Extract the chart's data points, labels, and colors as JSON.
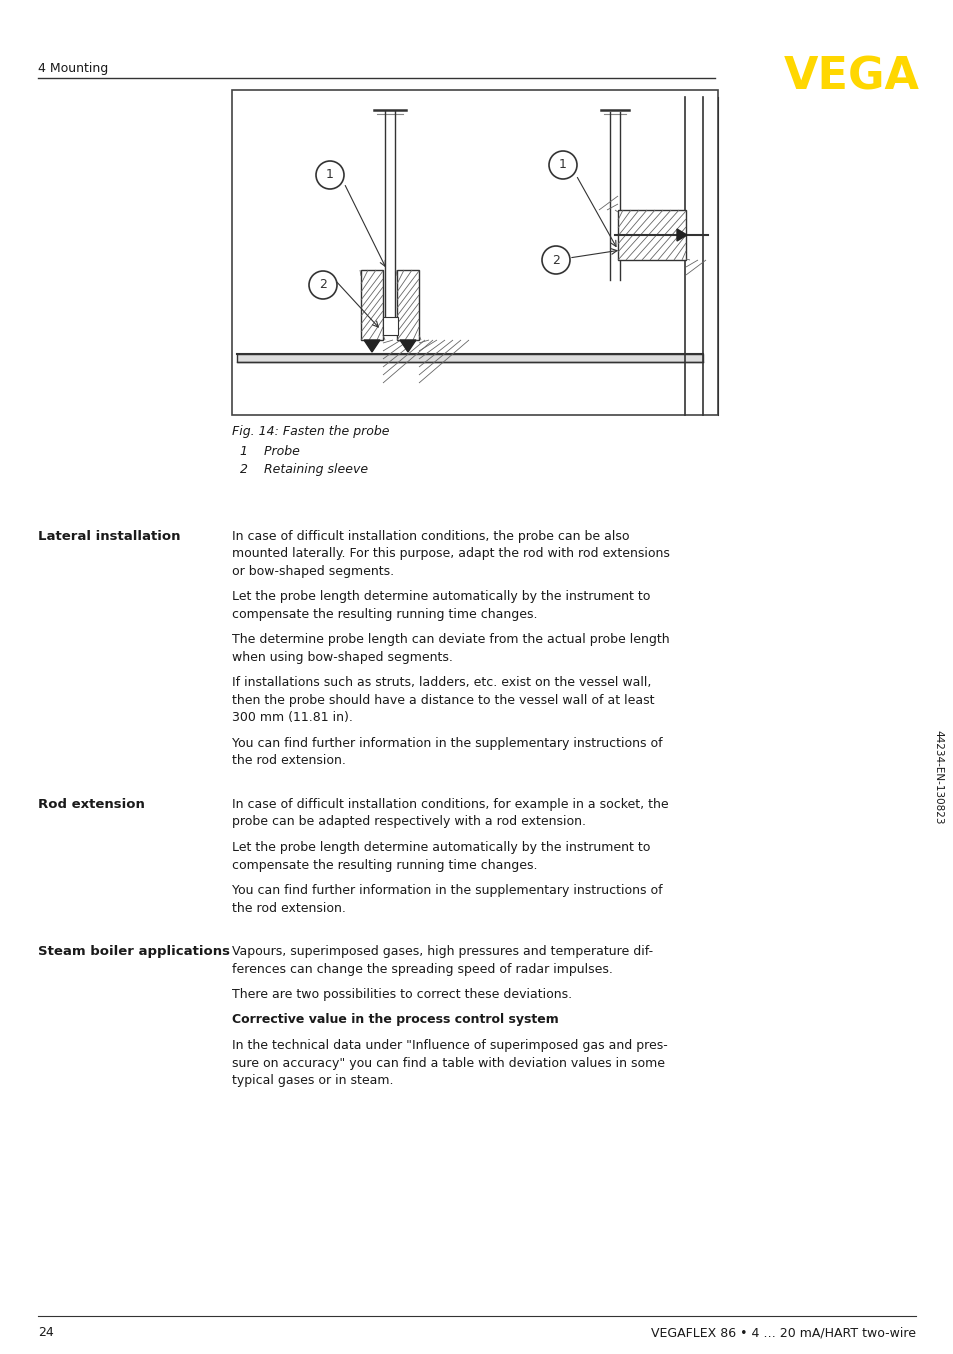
{
  "page_number": "24",
  "footer_text": "VEGAFLEX 86 • 4 … 20 mA/HART two-wire",
  "header_section": "4 Mounting",
  "logo_text": "VEGA",
  "logo_color": "#FFD700",
  "fig_caption": "Fig. 14: Fasten the probe",
  "fig_items": [
    "1    Probe",
    "2    Retaining sleeve"
  ],
  "sections": [
    {
      "title": "Lateral installation",
      "paragraphs": [
        "In case of difficult installation conditions, the probe can be also\nmounted laterally. For this purpose, adapt the rod with rod extensions\nor bow-shaped segments.",
        "Let the probe length determine automatically by the instrument to\ncompensate the resulting running time changes.",
        "The determine probe length can deviate from the actual probe length\nwhen using bow-shaped segments.",
        "If installations such as struts, ladders, etc. exist on the vessel wall,\nthen the probe should have a distance to the vessel wall of at least\n300 mm (11.81 in).",
        "You can find further information in the supplementary instructions of\nthe rod extension."
      ]
    },
    {
      "title": "Rod extension",
      "paragraphs": [
        "In case of difficult installation conditions, for example in a socket, the\nprobe can be adapted respectively with a rod extension.",
        "Let the probe length determine automatically by the instrument to\ncompensate the resulting running time changes.",
        "You can find further information in the supplementary instructions of\nthe rod extension."
      ]
    },
    {
      "title": "Steam boiler applications",
      "paragraphs": [
        "Vapours, superimposed gases, high pressures and temperature dif-\nferences can change the spreading speed of radar impulses.",
        "There are two possibilities to correct these deviations.",
        "BOLD:Corrective value in the process control system",
        "In the technical data under \"Influence of superimposed gas and pres-\nsure on accuracy\" you can find a table with deviation values in some\ntypical gases or in steam."
      ]
    }
  ],
  "sidebar_text": "44234-EN-130823",
  "text_color": "#1a1a1a",
  "bg_color": "#ffffff"
}
